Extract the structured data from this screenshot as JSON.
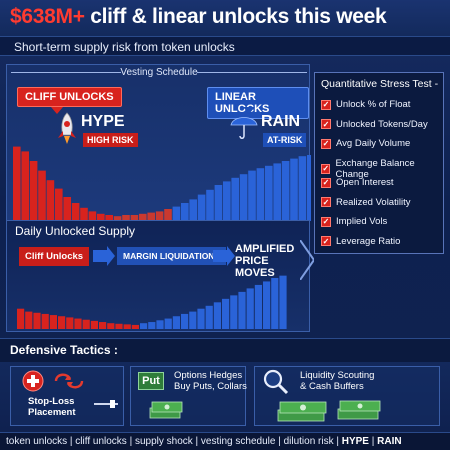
{
  "header": {
    "title_highlight": "$638M+",
    "title_rest": " cliff & linear unlocks this week",
    "subtitle": "Short-term supply risk from token unlocks"
  },
  "vesting": {
    "label": "Vesting Schedule",
    "cliff_tag": "CLIFF UNLOCKS",
    "linear_tag": "LINEAR UNLOCKS",
    "cliff_token": "HYPE",
    "cliff_risk": "HIGH RISK",
    "linear_token": "RAIN",
    "linear_risk": "AT-RISK",
    "cliff_series": [
      0.62,
      0.58,
      0.5,
      0.42,
      0.34,
      0.27,
      0.2,
      0.15,
      0.11,
      0.08,
      0.06,
      0.05
    ],
    "mid_series": [
      0.04,
      0.05,
      0.05,
      0.06,
      0.07,
      0.08,
      0.1
    ],
    "linear_series": [
      0.12,
      0.15,
      0.18,
      0.22,
      0.26,
      0.3,
      0.33,
      0.36,
      0.39,
      0.42,
      0.44,
      0.46,
      0.48,
      0.5,
      0.52,
      0.54,
      0.55,
      0.56
    ]
  },
  "stress": {
    "title": "Quantitative Stress Test -",
    "items": [
      "Unlock % of Float",
      "Unlocked Tokens/Day",
      "Avg Daily Volume",
      "Exchange Balance Change",
      "Open Interest",
      "Realized Volatility",
      "Implied Vols",
      "Leverage Ratio"
    ]
  },
  "supply": {
    "title": "Daily Unlocked Supply",
    "flow_1": "Cliff Unlocks",
    "flow_2": "MARGIN LIQUIDATIONS",
    "flow_3_line1": "AMPLIFIED",
    "flow_3_line2": "PRICE MOVES",
    "red_series": [
      0.35,
      0.3,
      0.28,
      0.26,
      0.24,
      0.22,
      0.2,
      0.18,
      0.16,
      0.14,
      0.12,
      0.1,
      0.09,
      0.08,
      0.07
    ],
    "blue_series": [
      0.1,
      0.12,
      0.15,
      0.18,
      0.22,
      0.26,
      0.3,
      0.35,
      0.4,
      0.46,
      0.52,
      0.58,
      0.64,
      0.7,
      0.76,
      0.82,
      0.88,
      0.92
    ]
  },
  "defensive": {
    "title": "Defensive Tactics :",
    "stop_loss_line1": "Stop-Loss",
    "stop_loss_line2": "Placement",
    "options_line1": "Options Hedges",
    "options_line2": "Buy Puts, Collars",
    "put_label": "Put",
    "liquidity_line1": "Liquidity Scouting",
    "liquidity_line2": "& Cash Buffers"
  },
  "footer": {
    "tags": "token unlocks | cliff unlocks | supply shock | vesting schedule | dilution risk | ",
    "t1": "HYPE",
    "sep": " | ",
    "t2": "RAIN"
  },
  "colors": {
    "red": "#d8231e",
    "blue": "#2a63d8",
    "navy": "#0e1f4a"
  },
  "icons": [
    "rocket-icon",
    "umbrella-icon",
    "checkbox-icon",
    "shield-plus-icon",
    "cycle-arrows-icon",
    "magnifier-icon",
    "cash-stack-icon"
  ]
}
